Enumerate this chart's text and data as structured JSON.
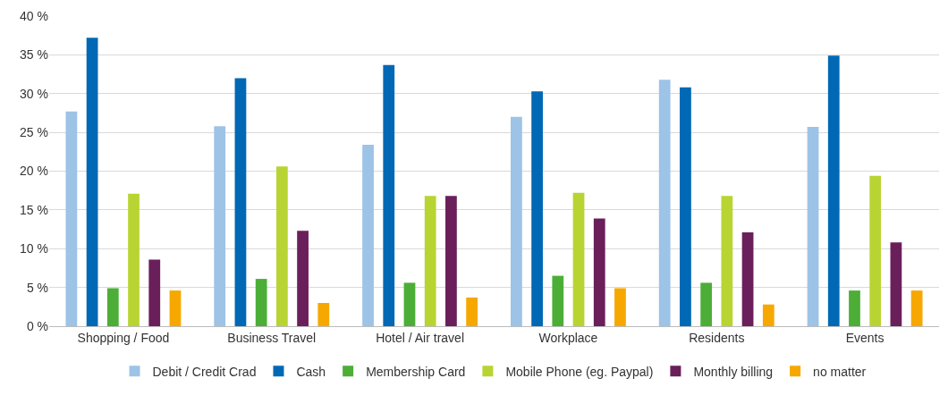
{
  "chart_data": {
    "type": "bar",
    "categories": [
      "Shopping / Food",
      "Business Travel",
      "Hotel / Air travel",
      "Workplace",
      "Residents",
      "Events"
    ],
    "series": [
      {
        "name": "Debit / Credit Crad",
        "color": "#9dc3e6",
        "values": [
          27.7,
          25.8,
          23.4,
          27,
          31.8,
          25.7
        ]
      },
      {
        "name": "Cash",
        "color": "#0068b4",
        "values": [
          37.2,
          32,
          33.7,
          30.3,
          30.8,
          34.9
        ]
      },
      {
        "name": "Membership Card",
        "color": "#4cae37",
        "values": [
          4.9,
          6.1,
          5.6,
          6.5,
          5.6,
          4.6
        ]
      },
      {
        "name": "Mobile Phone (eg. Paypal)",
        "color": "#b8d433",
        "values": [
          17.1,
          20.6,
          16.8,
          17.2,
          16.8,
          19.4
        ]
      },
      {
        "name": "Monthly billing",
        "color": "#6a1f5b",
        "values": [
          8.6,
          12.3,
          16.8,
          13.9,
          12.1,
          10.8
        ]
      },
      {
        "name": "no matter",
        "color": "#f6a800",
        "values": [
          4.6,
          3.0,
          3.7,
          4.9,
          2.8,
          4.6
        ]
      }
    ],
    "ylim": [
      0,
      40
    ],
    "yticks": [
      {
        "value": 0,
        "label": "0 %"
      },
      {
        "value": 5,
        "label": "5 %"
      },
      {
        "value": 10,
        "label": "10 %"
      },
      {
        "value": 15,
        "label": "15 %"
      },
      {
        "value": 20,
        "label": "20 %"
      },
      {
        "value": 25,
        "label": "25 %"
      },
      {
        "value": 30,
        "label": "30 %"
      },
      {
        "value": 35,
        "label": "35 %"
      },
      {
        "value": 40,
        "label": "40 %"
      }
    ],
    "grid": "y",
    "legend": "bottom"
  }
}
